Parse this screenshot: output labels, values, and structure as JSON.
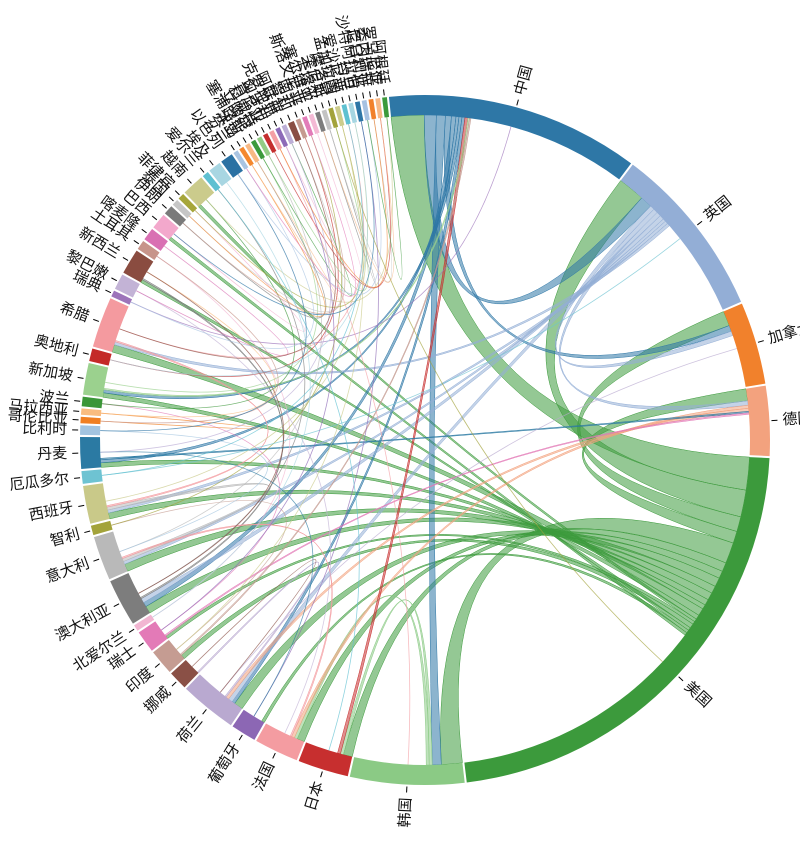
{
  "chart_data": {
    "type": "chord",
    "title": "",
    "nodes": [
      {
        "label": "中国",
        "value": 80,
        "color": "#2e77a6"
      },
      {
        "label": "英国",
        "value": 55,
        "color": "#93aed6"
      },
      {
        "label": "加拿大",
        "value": 26,
        "color": "#f1812c"
      },
      {
        "label": "德国",
        "value": 22,
        "color": "#f3a27e"
      },
      {
        "label": "美国",
        "value": 150,
        "color": "#3c9a3c"
      },
      {
        "label": "韩国",
        "value": 36,
        "color": "#8bca85"
      },
      {
        "label": "日本",
        "value": 16,
        "color": "#c72f2f"
      },
      {
        "label": "法国",
        "value": 14,
        "color": "#f49ca1"
      },
      {
        "label": "葡萄牙",
        "value": 8,
        "color": "#8c67b4"
      },
      {
        "label": "荷兰",
        "value": 18,
        "color": "#b9a9d0"
      },
      {
        "label": "挪威",
        "value": 6,
        "color": "#8a5046"
      },
      {
        "label": "印度",
        "value": 8,
        "color": "#c59c92"
      },
      {
        "label": "瑞士",
        "value": 7,
        "color": "#e37ab7"
      },
      {
        "label": "北爱尔兰",
        "value": 2,
        "color": "#f2b6d2"
      },
      {
        "label": "澳大利亚",
        "value": 15,
        "color": "#7d7d7d"
      },
      {
        "label": "意大利",
        "value": 14,
        "color": "#b9b9b9"
      },
      {
        "label": "智利",
        "value": 3,
        "color": "#a3a33a"
      },
      {
        "label": "西班牙",
        "value": 12,
        "color": "#c9c989"
      },
      {
        "label": "厄瓜多尔",
        "value": 4,
        "color": "#6ec3d2"
      },
      {
        "label": "丹麦",
        "value": 10,
        "color": "#2b7aa3"
      },
      {
        "label": "比利时",
        "value": 3,
        "color": "#a3c4e0"
      },
      {
        "label": "哥伦比亚",
        "value": 2,
        "color": "#f07f22"
      },
      {
        "label": "马拉西亚",
        "value": 2,
        "color": "#f9bc7f"
      },
      {
        "label": "波兰",
        "value": 3,
        "color": "#3b9638"
      },
      {
        "label": "新加坡",
        "value": 10,
        "color": "#9bd18e"
      },
      {
        "label": "奥地利",
        "value": 4,
        "color": "#c42a28"
      },
      {
        "label": "希腊",
        "value": 16,
        "color": "#f49a9f"
      },
      {
        "label": "瑞典",
        "value": 2,
        "color": "#9d74ba"
      },
      {
        "label": "黎巴嫩",
        "value": 5,
        "color": "#c3b3d6"
      },
      {
        "label": "新西兰",
        "value": 8,
        "color": "#8a4c40"
      },
      {
        "label": "土耳其",
        "value": 3,
        "color": "#c7948a"
      },
      {
        "label": "喀麦隆",
        "value": 4,
        "color": "#d970b3"
      },
      {
        "label": "巴西",
        "value": 5,
        "color": "#f3a8cc"
      },
      {
        "label": "伊朗",
        "value": 3,
        "color": "#7a7a7a"
      },
      {
        "label": "泰国",
        "value": 2,
        "color": "#c6c6c6"
      },
      {
        "label": "菲律宾",
        "value": 2,
        "color": "#a6a63a"
      },
      {
        "label": "越南",
        "value": 7,
        "color": "#cbcb8c"
      },
      {
        "label": "爱尔兰",
        "value": 2,
        "color": "#5fc0d1"
      },
      {
        "label": "埃及",
        "value": 4,
        "color": "#a8d6e2"
      },
      {
        "label": "以色列",
        "value": 4,
        "color": "#2a71a3"
      },
      {
        "label": "芬兰",
        "value": 1.5,
        "color": "#a9c4e2"
      },
      {
        "label": "冰岛",
        "value": 1.5,
        "color": "#f4882e"
      },
      {
        "label": "塞浦路斯",
        "value": 1.5,
        "color": "#f8b985"
      },
      {
        "label": "立陶宛",
        "value": 1.5,
        "color": "#3c9a3c"
      },
      {
        "label": "科威特",
        "value": 1.5,
        "color": "#93cd86"
      },
      {
        "label": "肯尼亚",
        "value": 1.5,
        "color": "#c42e2e"
      },
      {
        "label": "匈牙利",
        "value": 1.5,
        "color": "#f4a0a5"
      },
      {
        "label": "克罗地亚",
        "value": 1.5,
        "color": "#8d6ab8"
      },
      {
        "label": "阿联酋",
        "value": 1.5,
        "color": "#bcaed6"
      },
      {
        "label": "智利",
        "value": 2,
        "color": "#8a4e43"
      },
      {
        "label": "南非",
        "value": 1.5,
        "color": "#c59a8f"
      },
      {
        "label": "斯洛文尼亚",
        "value": 1.5,
        "color": "#e27cb9"
      },
      {
        "label": "塞尔维亚",
        "value": 1.5,
        "color": "#f4bad5"
      },
      {
        "label": "卡塔尔",
        "value": 1.5,
        "color": "#7d7d7d"
      },
      {
        "label": "突尼斯",
        "value": 1.5,
        "color": "#c3c3c3"
      },
      {
        "label": "摩洛哥",
        "value": 1.5,
        "color": "#a3a33c"
      },
      {
        "label": "孟加拉国",
        "value": 1.5,
        "color": "#cccc8c"
      },
      {
        "label": "爱沙尼亚",
        "value": 1.5,
        "color": "#5fc1d1"
      },
      {
        "label": "约旦",
        "value": 1.5,
        "color": "#a6d6e2"
      },
      {
        "label": "沙特阿拉伯",
        "value": 1.5,
        "color": "#2e76a6"
      },
      {
        "label": "尼日利亚",
        "value": 1.5,
        "color": "#a6c1e1"
      },
      {
        "label": "委内瑞拉",
        "value": 1.5,
        "color": "#f1812c"
      },
      {
        "label": "罗马尼亚",
        "value": 1.5,
        "color": "#f7b886"
      },
      {
        "label": "阿根廷",
        "value": 1.5,
        "color": "#3c9a3c"
      }
    ],
    "flows": [
      [
        4,
        0,
        22
      ],
      [
        4,
        1,
        18
      ],
      [
        4,
        2,
        10
      ],
      [
        4,
        3,
        8
      ],
      [
        4,
        5,
        14
      ],
      [
        4,
        6,
        6
      ],
      [
        4,
        7,
        5
      ],
      [
        4,
        9,
        6
      ],
      [
        4,
        14,
        5
      ],
      [
        4,
        15,
        5
      ],
      [
        4,
        17,
        4
      ],
      [
        4,
        19,
        3
      ],
      [
        4,
        26,
        5
      ],
      [
        4,
        24,
        3
      ],
      [
        4,
        36,
        2
      ],
      [
        4,
        12,
        2
      ],
      [
        4,
        11,
        3
      ],
      [
        4,
        29,
        2
      ],
      [
        4,
        8,
        2
      ],
      [
        4,
        32,
        2
      ],
      [
        0,
        1,
        8
      ],
      [
        0,
        5,
        6
      ],
      [
        0,
        2,
        4
      ],
      [
        0,
        14,
        3
      ],
      [
        0,
        19,
        2
      ],
      [
        0,
        24,
        2
      ],
      [
        0,
        9,
        2
      ],
      [
        1,
        2,
        3
      ],
      [
        1,
        3,
        3
      ],
      [
        1,
        9,
        3
      ],
      [
        1,
        14,
        3
      ],
      [
        1,
        15,
        2
      ],
      [
        1,
        17,
        2
      ],
      [
        1,
        26,
        2
      ],
      [
        5,
        6,
        2
      ],
      [
        5,
        7,
        2
      ],
      [
        3,
        7,
        2
      ],
      [
        3,
        9,
        2
      ],
      [
        9,
        10,
        1
      ],
      [
        15,
        17,
        2
      ],
      [
        14,
        29,
        1
      ],
      [
        7,
        15,
        1
      ],
      [
        6,
        0,
        2
      ],
      [
        26,
        17,
        1
      ],
      [
        24,
        0,
        1
      ],
      [
        19,
        3,
        1
      ],
      [
        12,
        3,
        1
      ],
      [
        11,
        0,
        1
      ]
    ]
  }
}
